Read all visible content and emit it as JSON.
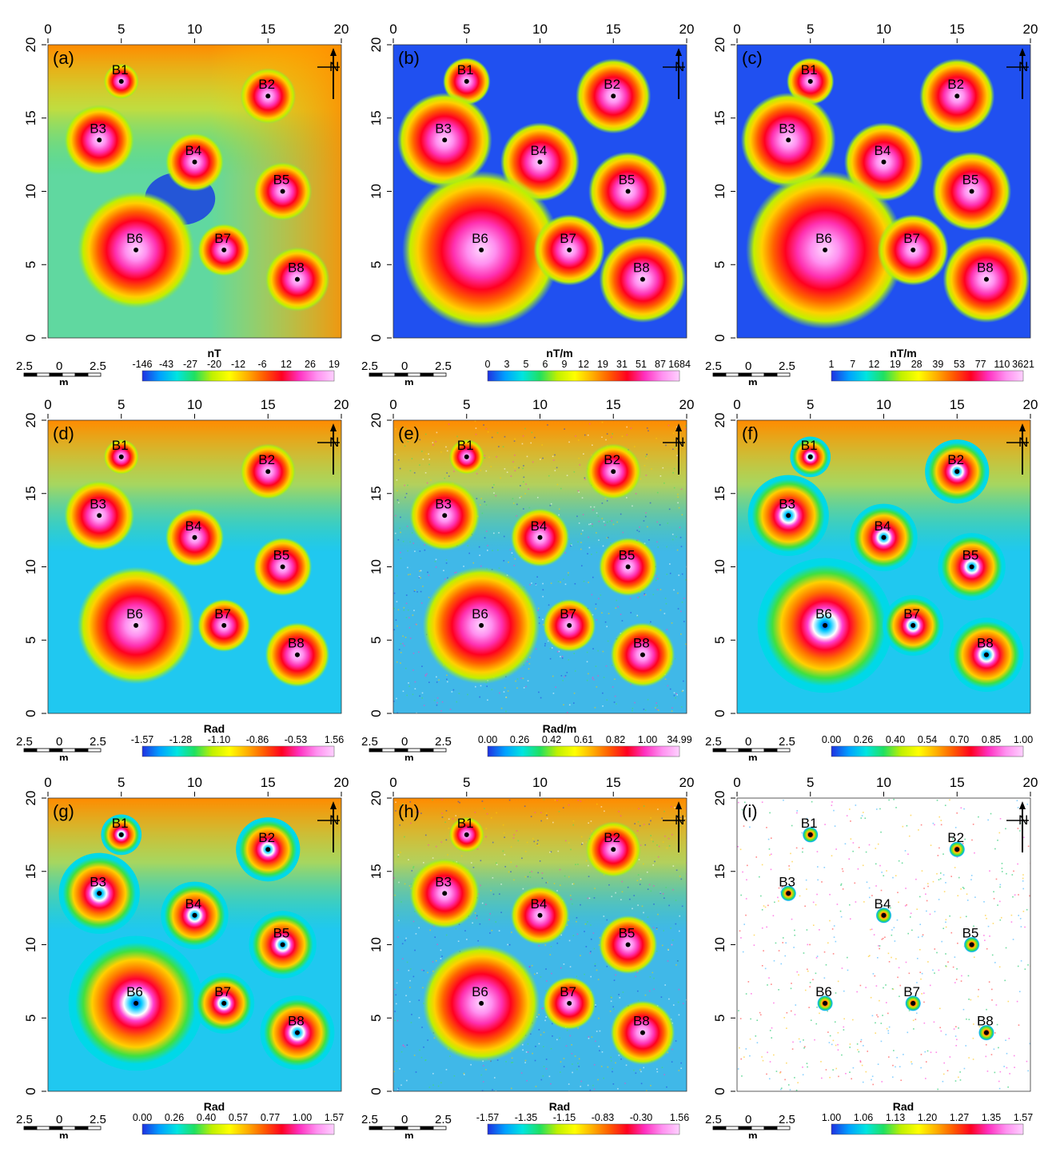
{
  "axis_ticks": [
    "0",
    "5",
    "10",
    "15",
    "20"
  ],
  "body_labels": [
    "B1",
    "B2",
    "B3",
    "B4",
    "B5",
    "B6",
    "B7",
    "B8"
  ],
  "bodies": [
    {
      "name": "B1",
      "x": 5,
      "y": 17.5,
      "r": 1.2
    },
    {
      "name": "B2",
      "x": 15,
      "y": 16.5,
      "r": 1.9
    },
    {
      "name": "B3",
      "x": 3.5,
      "y": 13.5,
      "r": 2.4
    },
    {
      "name": "B4",
      "x": 10,
      "y": 12,
      "r": 2.0
    },
    {
      "name": "B5",
      "x": 16,
      "y": 10,
      "r": 2.0
    },
    {
      "name": "B6",
      "x": 6,
      "y": 6,
      "r": 4.0
    },
    {
      "name": "B7",
      "x": 12,
      "y": 6,
      "r": 1.8
    },
    {
      "name": "B8",
      "x": 17,
      "y": 4,
      "r": 2.2
    }
  ],
  "north": "N",
  "scalebar": {
    "ticks": [
      "2.5",
      "0",
      "2.5"
    ],
    "unit": "m"
  },
  "colors": {
    "ramp": [
      "#2030e0",
      "#00a0ff",
      "#00e5e0",
      "#20e060",
      "#c0f000",
      "#ffff00",
      "#ffb000",
      "#ff5a00",
      "#ff0020",
      "#ff30c0",
      "#ff90f0",
      "#ffd0ff"
    ]
  },
  "panels": [
    {
      "id": "a",
      "label": "(a)",
      "unit": "nT",
      "colorbar": [
        "-146",
        "-43",
        "-27",
        "-20",
        "-12",
        "-6",
        "12",
        "26",
        "19"
      ],
      "style": "field"
    },
    {
      "id": "b",
      "label": "(b)",
      "unit": "nT/m",
      "colorbar": [
        "0",
        "3",
        "5",
        "6",
        "9",
        "12",
        "19",
        "31",
        "51",
        "87",
        "1684"
      ],
      "style": "halo"
    },
    {
      "id": "c",
      "label": "(c)",
      "unit": "nT/m",
      "colorbar": [
        "1",
        "7",
        "12",
        "19",
        "28",
        "39",
        "53",
        "77",
        "110",
        "3621"
      ],
      "style": "halo"
    },
    {
      "id": "d",
      "label": "(d)",
      "unit": "Rad",
      "colorbar": [
        "-1.57",
        "-1.28",
        "-1.10",
        "-0.86",
        "-0.53",
        "1.56"
      ],
      "style": "rad"
    },
    {
      "id": "e",
      "label": "(e)",
      "unit": "Rad/m",
      "colorbar": [
        "0.00",
        "0.26",
        "0.42",
        "0.61",
        "0.82",
        "1.00",
        "34.99"
      ],
      "style": "noisy"
    },
    {
      "id": "f",
      "label": "(f)",
      "unit": "",
      "colorbar": [
        "0.00",
        "0.26",
        "0.40",
        "0.54",
        "0.70",
        "0.85",
        "1.00"
      ],
      "style": "rings"
    },
    {
      "id": "g",
      "label": "(g)",
      "unit": "Rad",
      "colorbar": [
        "0.00",
        "0.26",
        "0.40",
        "0.57",
        "0.77",
        "1.00",
        "1.57"
      ],
      "style": "rings"
    },
    {
      "id": "h",
      "label": "(h)",
      "unit": "Rad",
      "colorbar": [
        "-1.57",
        "-1.35",
        "-1.15",
        "-0.83",
        "-0.30",
        "1.56"
      ],
      "style": "tilt"
    },
    {
      "id": "i",
      "label": "(i)",
      "unit": "Rad",
      "colorbar": [
        "1.00",
        "1.06",
        "1.13",
        "1.20",
        "1.27",
        "1.35",
        "1.57"
      ],
      "style": "dots"
    }
  ]
}
